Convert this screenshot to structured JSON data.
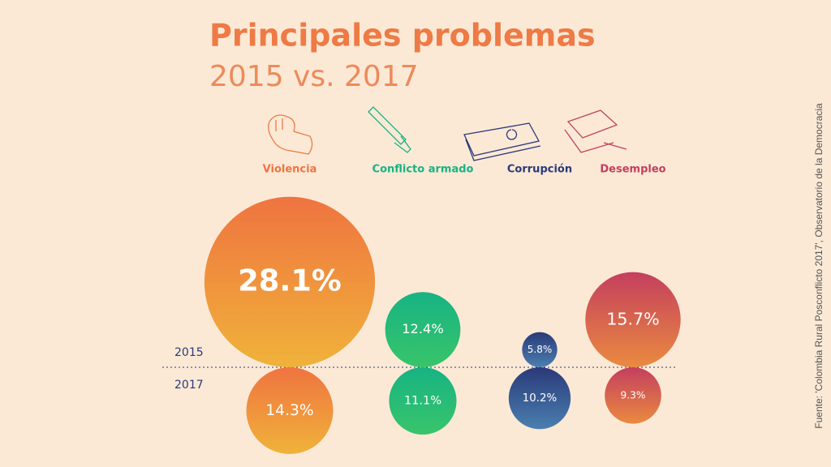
{
  "chart_data": {
    "type": "bubble",
    "title": "Principales problemas",
    "subtitle": "2015 vs. 2017",
    "categories": [
      "Violencia",
      "Conflicto armado",
      "Corrupción",
      "Desempleo"
    ],
    "colors": [
      [
        "#ef7440",
        "#f0b23a"
      ],
      [
        "#17b383",
        "#38c46a"
      ],
      [
        "#2a3a78",
        "#4a7fb0"
      ],
      [
        "#c43f5e",
        "#ea8a40"
      ]
    ],
    "series": [
      {
        "name": "2015",
        "values": [
          28.1,
          12.4,
          5.8,
          15.7
        ],
        "value_labels": [
          "28.1%",
          "12.4%",
          "5.8%",
          "15.7%"
        ]
      },
      {
        "name": "2017",
        "values": [
          14.3,
          11.1,
          10.2,
          9.3
        ],
        "value_labels": [
          "14.3%",
          "11.1%",
          "10.2%",
          "9.3%"
        ]
      }
    ],
    "source": "Fuente: 'Colombia Rural Posconflicto 2017', Observatorio de la Democracia"
  }
}
